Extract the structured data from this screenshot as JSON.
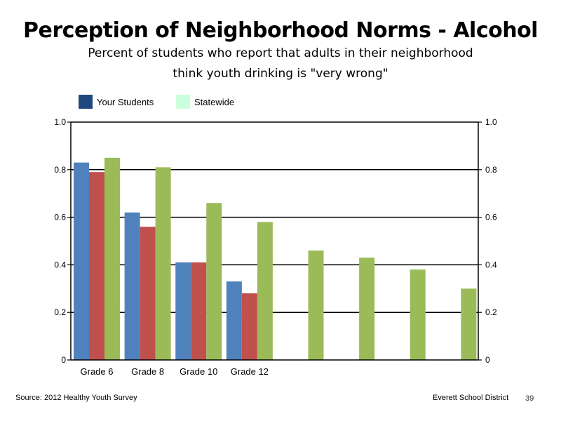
{
  "title": "Perception of Neighborhood Norms - Alcohol",
  "subtitle_line1": "Percent of students who report that adults in their neighborhood",
  "subtitle_line2": "think youth drinking is \"very wrong\"",
  "legend": [
    {
      "label": "Your Students",
      "color": "#1f497d"
    },
    {
      "label": "Statewide",
      "color": "#ccffdd"
    }
  ],
  "footer": {
    "source": "Source: 2012 Healthy Youth Survey",
    "district": "Everett School District",
    "page": "39"
  },
  "chart_data": {
    "type": "bar",
    "categories": [
      "Grade 6",
      "Grade 8",
      "Grade 10",
      "Grade 12",
      "",
      "",
      "",
      ""
    ],
    "series": [
      {
        "color": "#4f81bd",
        "values": [
          0.83,
          0.62,
          0.41,
          0.33,
          null,
          null,
          null,
          null
        ]
      },
      {
        "color": "#c0504d",
        "values": [
          0.79,
          0.56,
          0.41,
          0.28,
          null,
          null,
          null,
          null
        ]
      },
      {
        "color": "#9bbb59",
        "values": [
          0.85,
          0.81,
          0.66,
          0.58,
          0.46,
          0.43,
          0.38,
          0.3
        ]
      }
    ],
    "ylim": [
      0,
      1.0
    ],
    "yticks": [
      "0",
      "0.2",
      "0.4",
      "0.6",
      "0.8",
      "1.0"
    ],
    "ytick_values": [
      0,
      0.2,
      0.4,
      0.6,
      0.8,
      1.0
    ],
    "grid": true,
    "secondary_axis": true,
    "legend_position": "top-left"
  }
}
